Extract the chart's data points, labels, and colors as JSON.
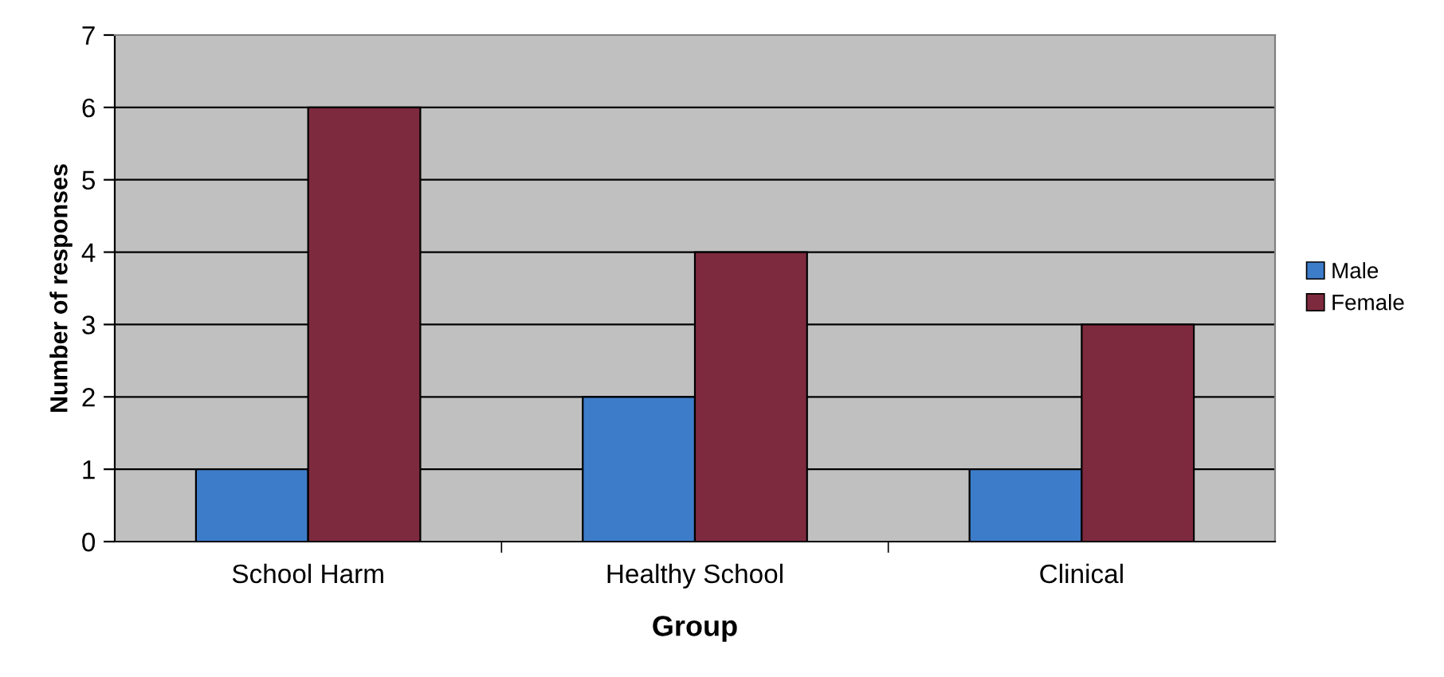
{
  "chart_data": {
    "type": "bar",
    "xlabel": "Group",
    "ylabel": "Number of responses",
    "categories": [
      "School Harm",
      "Healthy School",
      "Clinical"
    ],
    "series": [
      {
        "name": "Male",
        "color": "#3d7cc9",
        "values": [
          1,
          2,
          1
        ]
      },
      {
        "name": "Female",
        "color": "#7e2a3e",
        "values": [
          6,
          4,
          3
        ]
      }
    ],
    "ylim": [
      0,
      7
    ],
    "yticks": [
      0,
      1,
      2,
      3,
      4,
      5,
      6,
      7
    ],
    "grid": "y",
    "legend": "right"
  }
}
